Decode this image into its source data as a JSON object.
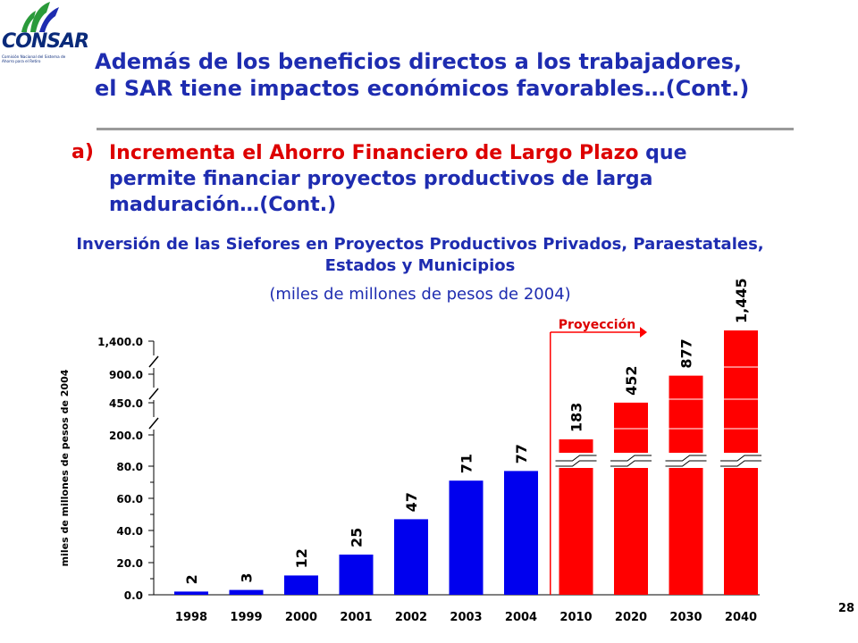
{
  "logo": {
    "brand_prefix": "CON",
    "brand_suffix": "SAR",
    "brand_subtitle": "Comisión Nacional del Sistema de Ahorro para el Retiro"
  },
  "header": {
    "title_line1": "Además de los beneficios directos a los trabajadores,",
    "title_line2": "el SAR tiene impactos económicos favorables…(Cont.)"
  },
  "point": {
    "marker": "a)",
    "highlight_1": "Incrementa el",
    "highlight_2": "Ahorro",
    "highlight_3": "Financiero de Largo Plazo",
    "text_rest_1": "que permite financiar proyectos productivos de larga maduración…(Cont.)"
  },
  "page_number": "28",
  "colors": {
    "historical": "#0000ee",
    "projection": "#ff0000",
    "title": "#1e2cb0",
    "accent": "#dd0000"
  },
  "chart_data": {
    "type": "bar",
    "title": "Inversión de las Siefores en Proyectos Productivos Privados, Paraestatales, Estados y Municipios",
    "subtitle": "(miles de millones de pesos de 2004)",
    "ylabel": "miles de millones de pesos de 2004",
    "xlabel": "",
    "categories": [
      "1998",
      "1999",
      "2000",
      "2001",
      "2002",
      "2003",
      "2004",
      "2010",
      "2020",
      "2030",
      "2040"
    ],
    "values": [
      2,
      3,
      12,
      25,
      47,
      71,
      77,
      183,
      452,
      877,
      1445
    ],
    "data_labels": [
      "2",
      "3",
      "12",
      "25",
      "47",
      "71",
      "77",
      "183",
      "452",
      "877",
      "1,445"
    ],
    "projected": [
      false,
      false,
      false,
      false,
      false,
      false,
      false,
      true,
      true,
      true,
      true
    ],
    "y_ticks": [
      "0.0",
      "20.0",
      "40.0",
      "60.0",
      "80.0",
      "200.0",
      "450.0",
      "900.0",
      "1,400.0"
    ],
    "y_tick_values": [
      0,
      20,
      40,
      60,
      80,
      200,
      450,
      900,
      1400
    ],
    "y_axis_breaks": true,
    "projection_label": "Proyección",
    "grid": false,
    "legend": "none"
  }
}
